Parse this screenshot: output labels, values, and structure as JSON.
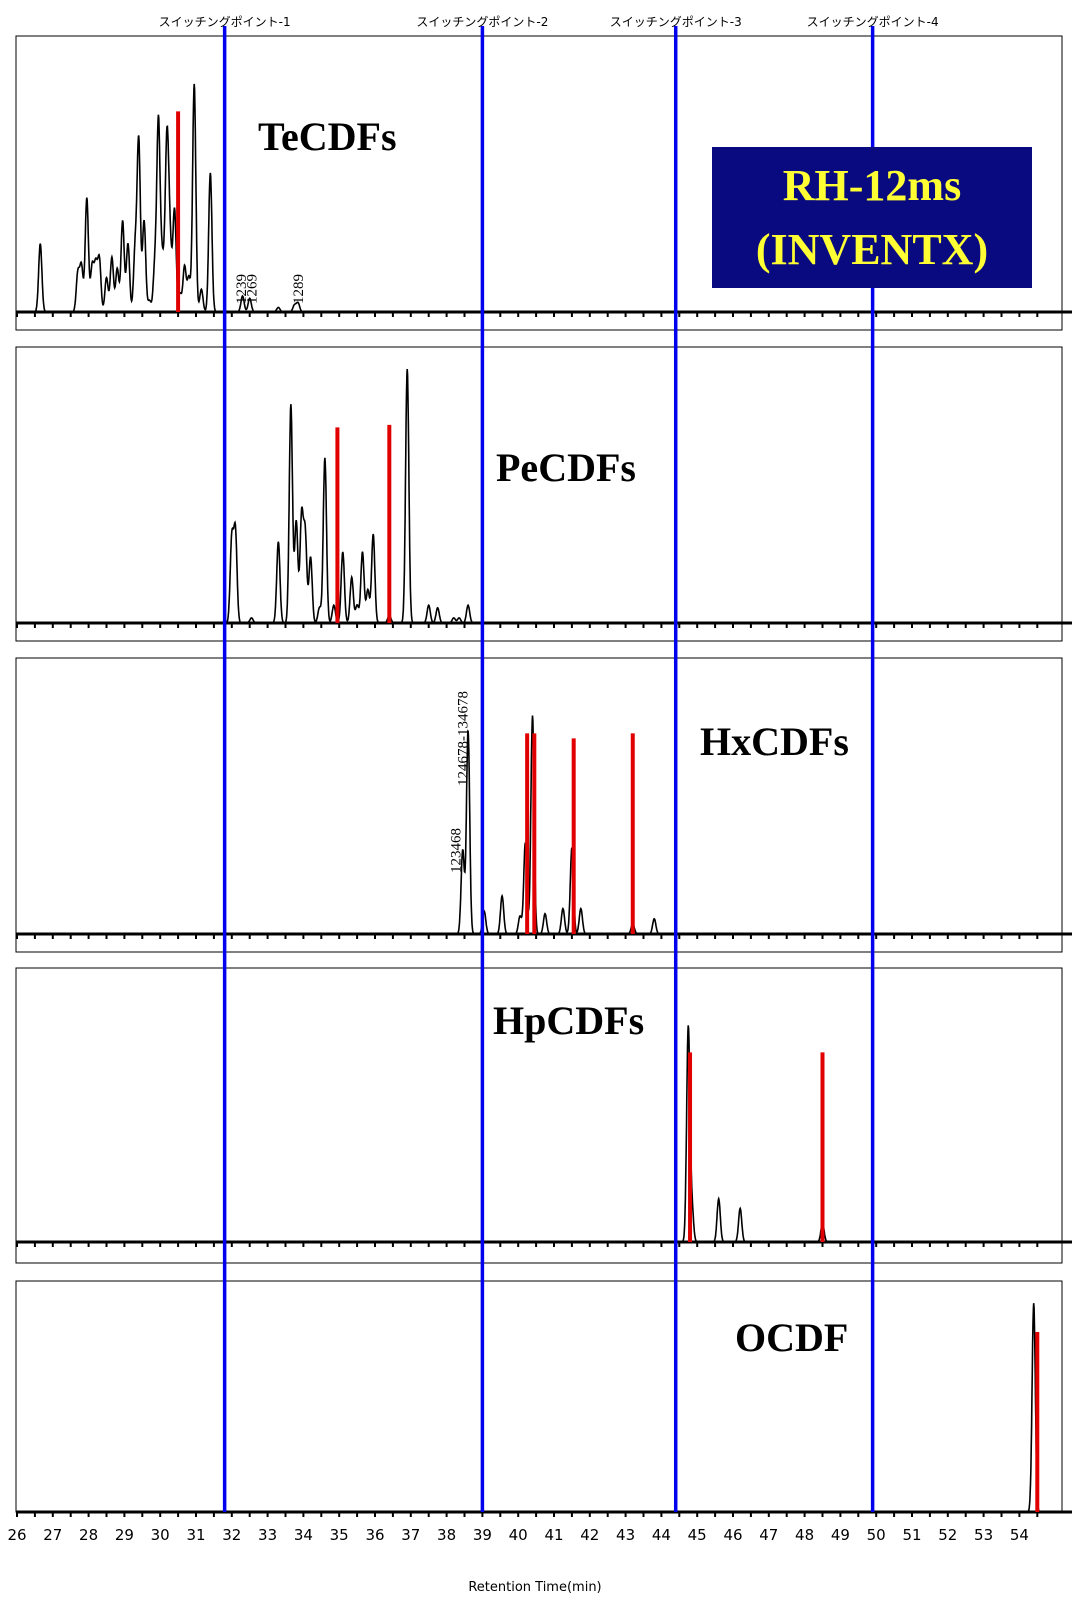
{
  "chart_data": {
    "type": "line",
    "x_unit": "min",
    "xlabel": "Retention Time(min)",
    "xlim": [
      26,
      54.7
    ],
    "x_ticks": [
      "26",
      "27",
      "28",
      "29",
      "30",
      "31",
      "32",
      "33",
      "34",
      "35",
      "36",
      "37",
      "38",
      "39",
      "40",
      "41",
      "42",
      "43",
      "44",
      "45",
      "46",
      "47",
      "48",
      "49",
      "50",
      "51",
      "52",
      "53",
      "54"
    ],
    "column_title": [
      "RH-12ms",
      "(INVENTX)"
    ],
    "switching_points": [
      {
        "label": "スイッチングポイント-1",
        "x": 31.8
      },
      {
        "label": "スイッチングポイント-2",
        "x": 39.0
      },
      {
        "label": "スイッチングポイント-3",
        "x": 44.4
      },
      {
        "label": "スイッチングポイント-4",
        "x": 49.9
      }
    ],
    "panels": [
      {
        "title": "TeCDFs",
        "peaks": [
          {
            "x": 26.65,
            "h": 0.3
          },
          {
            "x": 27.7,
            "h": 0.17
          },
          {
            "x": 27.8,
            "h": 0.2
          },
          {
            "x": 27.95,
            "h": 0.5
          },
          {
            "x": 28.1,
            "h": 0.2
          },
          {
            "x": 28.2,
            "h": 0.2
          },
          {
            "x": 28.3,
            "h": 0.23
          },
          {
            "x": 28.5,
            "h": 0.15
          },
          {
            "x": 28.65,
            "h": 0.24
          },
          {
            "x": 28.8,
            "h": 0.19
          },
          {
            "x": 28.95,
            "h": 0.4
          },
          {
            "x": 29.1,
            "h": 0.3
          },
          {
            "x": 29.3,
            "h": 0.27
          },
          {
            "x": 29.4,
            "h": 0.75
          },
          {
            "x": 29.55,
            "h": 0.4
          },
          {
            "x": 29.7,
            "h": 0.05
          },
          {
            "x": 29.85,
            "h": 0.2
          },
          {
            "x": 29.95,
            "h": 0.83
          },
          {
            "x": 30.05,
            "h": 0.22
          },
          {
            "x": 30.15,
            "h": 0.24
          },
          {
            "x": 30.2,
            "h": 0.63
          },
          {
            "x": 30.28,
            "h": 0.26
          },
          {
            "x": 30.4,
            "h": 0.45
          },
          {
            "x": 30.55,
            "h": 0.08
          },
          {
            "x": 30.68,
            "h": 0.2
          },
          {
            "x": 30.8,
            "h": 0.15
          },
          {
            "x": 30.95,
            "h": 1.0
          },
          {
            "x": 31.15,
            "h": 0.1
          },
          {
            "x": 31.4,
            "h": 0.61
          },
          {
            "x": 32.3,
            "h": 0.07
          },
          {
            "x": 32.5,
            "h": 0.06
          },
          {
            "x": 33.3,
            "h": 0.02
          },
          {
            "x": 33.75,
            "h": 0.03
          },
          {
            "x": 33.85,
            "h": 0.04
          }
        ],
        "markers": [
          {
            "x": 30.5,
            "h": 0.88
          }
        ],
        "peak_labels": [
          {
            "text": "1239",
            "x": 32.25
          },
          {
            "text": "1269",
            "x": 32.55
          },
          {
            "text": "1289",
            "x": 33.85
          }
        ]
      },
      {
        "title": "PeCDFs",
        "peaks": [
          {
            "x": 32.0,
            "h": 0.33
          },
          {
            "x": 32.1,
            "h": 0.36
          },
          {
            "x": 32.55,
            "h": 0.02
          },
          {
            "x": 33.3,
            "h": 0.32
          },
          {
            "x": 33.65,
            "h": 0.86
          },
          {
            "x": 33.8,
            "h": 0.4
          },
          {
            "x": 33.95,
            "h": 0.42
          },
          {
            "x": 34.05,
            "h": 0.35
          },
          {
            "x": 34.2,
            "h": 0.26
          },
          {
            "x": 34.45,
            "h": 0.06
          },
          {
            "x": 34.6,
            "h": 0.65
          },
          {
            "x": 34.85,
            "h": 0.07
          },
          {
            "x": 35.1,
            "h": 0.28
          },
          {
            "x": 35.35,
            "h": 0.18
          },
          {
            "x": 35.5,
            "h": 0.07
          },
          {
            "x": 35.65,
            "h": 0.28
          },
          {
            "x": 35.8,
            "h": 0.13
          },
          {
            "x": 35.95,
            "h": 0.35
          },
          {
            "x": 36.4,
            "h": 0.03
          },
          {
            "x": 36.9,
            "h": 1.0
          },
          {
            "x": 37.5,
            "h": 0.07
          },
          {
            "x": 37.75,
            "h": 0.06
          },
          {
            "x": 38.2,
            "h": 0.02
          },
          {
            "x": 38.35,
            "h": 0.02
          },
          {
            "x": 38.6,
            "h": 0.07
          }
        ],
        "markers": [
          {
            "x": 34.95,
            "h": 0.77
          },
          {
            "x": 36.4,
            "h": 0.78
          }
        ],
        "peak_labels": []
      },
      {
        "title": "HxCDFs",
        "peaks": [
          {
            "x": 38.45,
            "h": 0.33
          },
          {
            "x": 38.6,
            "h": 0.8
          },
          {
            "x": 39.05,
            "h": 0.09
          },
          {
            "x": 39.55,
            "h": 0.15
          },
          {
            "x": 40.05,
            "h": 0.07
          },
          {
            "x": 40.2,
            "h": 0.36
          },
          {
            "x": 40.4,
            "h": 0.86
          },
          {
            "x": 40.75,
            "h": 0.08
          },
          {
            "x": 41.25,
            "h": 0.1
          },
          {
            "x": 41.5,
            "h": 0.34
          },
          {
            "x": 41.75,
            "h": 0.1
          },
          {
            "x": 43.2,
            "h": 0.04
          },
          {
            "x": 43.8,
            "h": 0.06
          }
        ],
        "markers": [
          {
            "x": 40.25,
            "h": 0.79
          },
          {
            "x": 40.45,
            "h": 0.79
          },
          {
            "x": 41.55,
            "h": 0.77
          },
          {
            "x": 43.2,
            "h": 0.79
          }
        ],
        "peak_labels": [
          {
            "text": "123468",
            "x": 38.25
          },
          {
            "text": "124678-134678",
            "x": 38.45
          }
        ]
      },
      {
        "title": "HpCDFs",
        "peaks": [
          {
            "x": 44.75,
            "h": 0.89
          },
          {
            "x": 44.85,
            "h": 0.15
          },
          {
            "x": 45.6,
            "h": 0.18
          },
          {
            "x": 46.2,
            "h": 0.14
          },
          {
            "x": 48.5,
            "h": 0.08
          }
        ],
        "markers": [
          {
            "x": 44.8,
            "h": 0.79
          },
          {
            "x": 48.5,
            "h": 0.79
          }
        ],
        "peak_labels": []
      },
      {
        "title": "OCDF",
        "peaks": [
          {
            "x": 54.4,
            "h": 0.87
          }
        ],
        "markers": [
          {
            "x": 54.5,
            "h": 0.75
          }
        ],
        "peak_labels": []
      }
    ]
  }
}
